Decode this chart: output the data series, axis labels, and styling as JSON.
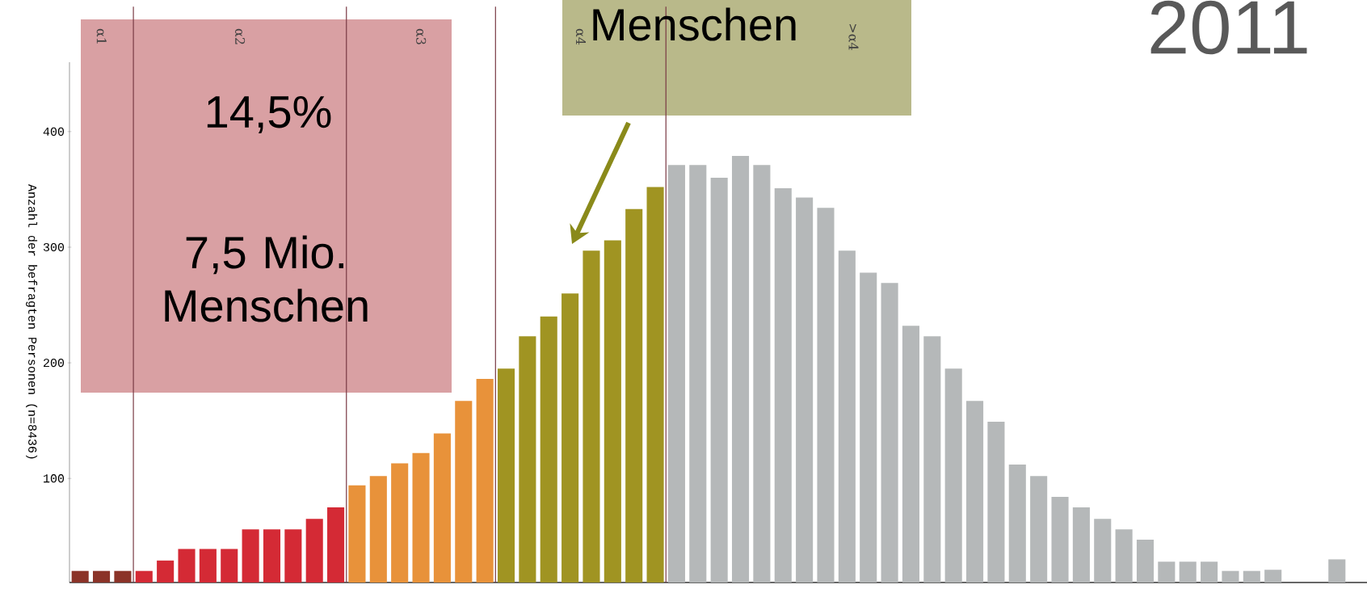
{
  "chart_data": {
    "type": "bar",
    "title": "2011",
    "ylabel": "Anzahl der befragten Personen (n=8436)",
    "annotations": [
      "14,5%",
      "7,5 Mio. Menschen",
      "Menschen",
      "α1",
      "α2",
      "α3",
      "α4",
      ">α4"
    ],
    "categories": [
      null,
      null,
      null,
      null,
      null,
      null,
      null,
      null,
      null,
      null,
      null,
      null,
      null,
      null,
      null,
      null,
      null,
      null,
      null,
      null,
      null,
      null,
      null,
      null,
      null,
      null,
      null,
      null,
      null,
      null,
      null,
      null,
      null,
      null,
      null,
      null,
      null,
      null,
      null,
      null,
      null,
      null,
      null,
      null,
      null,
      null,
      null,
      null,
      null,
      null,
      null,
      null,
      null,
      null,
      null,
      null,
      null,
      null,
      null,
      null
    ],
    "values": [
      20,
      20,
      20,
      20,
      29,
      39,
      39,
      39,
      56,
      56,
      56,
      65,
      75,
      94,
      102,
      113,
      122,
      139,
      167,
      186,
      195,
      223,
      240,
      260,
      297,
      306,
      333,
      352,
      371,
      371,
      360,
      379,
      371,
      351,
      343,
      334,
      297,
      278,
      269,
      232,
      223,
      195,
      167,
      149,
      112,
      102,
      84,
      75,
      65,
      56,
      47,
      28,
      28,
      28,
      20,
      20,
      21,
      null,
      null,
      30
    ],
    "colors": [
      "#8b3328",
      "#8b3328",
      "#8b3328",
      "#d42a35",
      "#d42a35",
      "#d42a35",
      "#d42a35",
      "#d42a35",
      "#d42a35",
      "#d42a35",
      "#d42a35",
      "#d42a35",
      "#d42a35",
      "#e8923a",
      "#e8923a",
      "#e8923a",
      "#e8923a",
      "#e8923a",
      "#e8923a",
      "#e8923a",
      "#a09422",
      "#a09422",
      "#a09422",
      "#a09422",
      "#a09422",
      "#a09422",
      "#a09422",
      "#a09422",
      "#b5b8b9",
      "#b5b8b9",
      "#b5b8b9",
      "#b5b8b9",
      "#b5b8b9",
      "#b5b8b9",
      "#b5b8b9",
      "#b5b8b9",
      "#b5b8b9",
      "#b5b8b9",
      "#b5b8b9",
      "#b5b8b9",
      "#b5b8b9",
      "#b5b8b9",
      "#b5b8b9",
      "#b5b8b9",
      "#b5b8b9",
      "#b5b8b9",
      "#b5b8b9",
      "#b5b8b9",
      "#b5b8b9",
      "#b5b8b9",
      "#b5b8b9",
      "#b5b8b9",
      "#b5b8b9",
      "#b5b8b9",
      "#b5b8b9",
      "#b5b8b9",
      "#b5b8b9",
      "#b5b8b9",
      "#b5b8b9",
      "#b5b8b9"
    ],
    "ylim": [
      10,
      460
    ],
    "yticks": [
      100,
      200,
      300,
      400
    ]
  }
}
